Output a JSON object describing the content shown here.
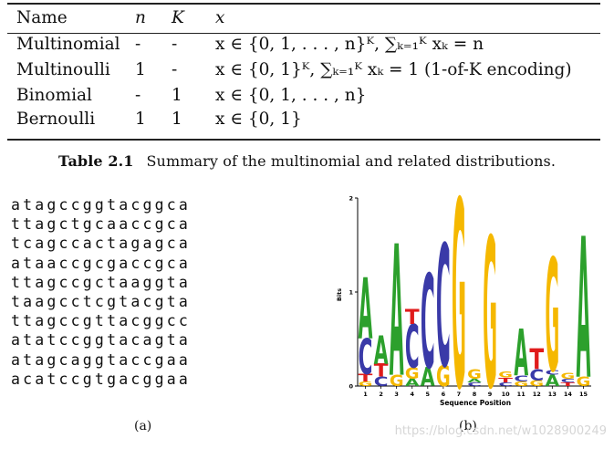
{
  "table": {
    "headers": {
      "name": "Name",
      "n": "n",
      "k": "K",
      "x": "x"
    },
    "rows": [
      {
        "name": "Multinomial",
        "n": "-",
        "k": "-",
        "x": "x ∈ {0, 1, . . . , n}ᴷ, ∑ₖ₌₁ᴷ xₖ = n"
      },
      {
        "name": "Multinoulli",
        "n": "1",
        "k": "-",
        "x": "x ∈ {0, 1}ᴷ, ∑ₖ₌₁ᴷ xₖ = 1 (1-of-K encoding)"
      },
      {
        "name": "Binomial",
        "n": "-",
        "k": "1",
        "x": "x ∈ {0, 1, . . . , n}"
      },
      {
        "name": "Bernoulli",
        "n": "1",
        "k": "1",
        "x": "x ∈ {0, 1}"
      }
    ],
    "caption_label": "Table 2.1",
    "caption_text": "Summary of the multinomial and related distributions."
  },
  "sequences": [
    "atagccggtacggca",
    "ttagctgcaaccgca",
    "tcagccactagagca",
    "ataaccgcgaccgca",
    "ttagccgctaaggta",
    "taagcctcgtacgta",
    "ttagccgttacggcc",
    "atatccggtacagta",
    "atagcaggtaccgaa",
    "acatccgtgacggaa"
  ],
  "panel_a_label": "(a)",
  "panel_b_label": "(b)",
  "logo": {
    "ylabel": "Bits",
    "xlabel": "Sequence Position",
    "ytick_labels": [
      "0",
      "1",
      "2"
    ],
    "xtick_labels": [
      "1",
      "2",
      "3",
      "4",
      "5",
      "6",
      "7",
      "8",
      "9",
      "10",
      "11",
      "12",
      "13",
      "14",
      "15"
    ],
    "colors": {
      "A": "#2ca02c",
      "C": "#3a3aa8",
      "G": "#f5b800",
      "T": "#e01b1b"
    }
  },
  "chart_data": {
    "type": "sequence-logo",
    "xlabel": "Sequence Position",
    "ylabel": "Bits",
    "ylim": [
      0,
      2
    ],
    "positions": [
      {
        "pos": 1,
        "letters": [
          {
            "l": "G",
            "h": 0.05
          },
          {
            "l": "T",
            "h": 0.08
          },
          {
            "l": "C",
            "h": 0.38
          },
          {
            "l": "A",
            "h": 0.65
          }
        ]
      },
      {
        "pos": 2,
        "letters": [
          {
            "l": "C",
            "h": 0.1
          },
          {
            "l": "T",
            "h": 0.14
          },
          {
            "l": "A",
            "h": 0.3
          }
        ]
      },
      {
        "pos": 3,
        "letters": [
          {
            "l": "G",
            "h": 0.12
          },
          {
            "l": "A",
            "h": 1.4
          }
        ]
      },
      {
        "pos": 4,
        "letters": [
          {
            "l": "A",
            "h": 0.08
          },
          {
            "l": "G",
            "h": 0.12
          },
          {
            "l": "C",
            "h": 0.46
          },
          {
            "l": "T",
            "h": 0.16
          }
        ]
      },
      {
        "pos": 5,
        "letters": [
          {
            "l": "A",
            "h": 0.2
          },
          {
            "l": "C",
            "h": 1.0
          }
        ]
      },
      {
        "pos": 6,
        "letters": [
          {
            "l": "G",
            "h": 0.22
          },
          {
            "l": "C",
            "h": 1.3
          }
        ]
      },
      {
        "pos": 7,
        "letters": [
          {
            "l": "G",
            "h": 2.0
          }
        ]
      },
      {
        "pos": 8,
        "letters": [
          {
            "l": "C",
            "h": 0.04
          },
          {
            "l": "A",
            "h": 0.04
          },
          {
            "l": "G",
            "h": 0.1
          }
        ]
      },
      {
        "pos": 9,
        "letters": [
          {
            "l": "G",
            "h": 1.6
          }
        ]
      },
      {
        "pos": 10,
        "letters": [
          {
            "l": "C",
            "h": 0.04
          },
          {
            "l": "T",
            "h": 0.05
          },
          {
            "l": "G",
            "h": 0.06
          }
        ]
      },
      {
        "pos": 11,
        "letters": [
          {
            "l": "G",
            "h": 0.05
          },
          {
            "l": "C",
            "h": 0.06
          },
          {
            "l": "A",
            "h": 0.5
          }
        ]
      },
      {
        "pos": 12,
        "letters": [
          {
            "l": "G",
            "h": 0.06
          },
          {
            "l": "C",
            "h": 0.12
          },
          {
            "l": "T",
            "h": 0.22
          }
        ]
      },
      {
        "pos": 13,
        "letters": [
          {
            "l": "A",
            "h": 0.12
          },
          {
            "l": "C",
            "h": 0.05
          },
          {
            "l": "G",
            "h": 1.2
          }
        ]
      },
      {
        "pos": 14,
        "letters": [
          {
            "l": "T",
            "h": 0.04
          },
          {
            "l": "C",
            "h": 0.04
          },
          {
            "l": "G",
            "h": 0.06
          }
        ]
      },
      {
        "pos": 15,
        "letters": [
          {
            "l": "G",
            "h": 0.1
          },
          {
            "l": "A",
            "h": 1.5
          }
        ]
      }
    ]
  },
  "watermark": "https://blog.csdn.net/w1028900249"
}
